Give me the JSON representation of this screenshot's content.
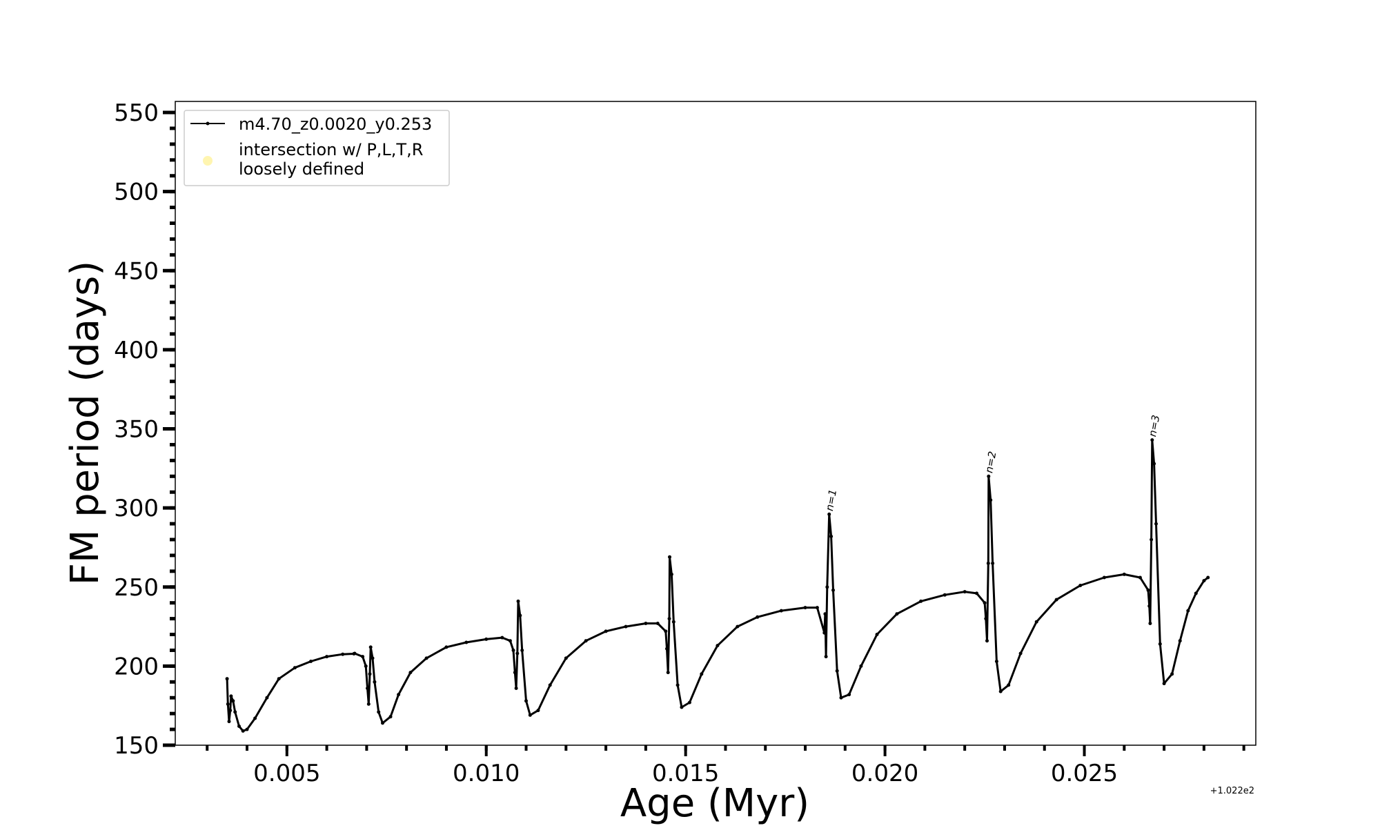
{
  "chart_data": {
    "type": "line",
    "xlabel": "Age (Myr)",
    "ylabel": "FM period (days)",
    "x_offset_label": "+1.022e2",
    "xlim": [
      0.0022,
      0.0293
    ],
    "ylim": [
      150,
      557
    ],
    "x_major_ticks": [
      0.005,
      0.01,
      0.015,
      0.02,
      0.025
    ],
    "x_tick_labels": [
      "0.005",
      "0.010",
      "0.015",
      "0.020",
      "0.025"
    ],
    "x_minor_step": 0.001,
    "y_major_ticks": [
      150,
      200,
      250,
      300,
      350,
      400,
      450,
      500,
      550
    ],
    "y_tick_labels": [
      "150",
      "200",
      "250",
      "300",
      "350",
      "400",
      "450",
      "500",
      "550"
    ],
    "y_minor_step": 10,
    "grid": false,
    "legend_position": "top-left",
    "legend": [
      {
        "label": "m4.70_z0.0020_y0.253",
        "style": "line-marker",
        "color": "#000000"
      },
      {
        "label": "intersection w/ P,L,T,R\nloosely defined",
        "style": "dot",
        "color": "#fff5b0"
      }
    ],
    "series": [
      {
        "name": "m4.70_z0.0020_y0.253",
        "color": "#000000",
        "points": [
          [
            0.0035,
            192
          ],
          [
            0.00352,
            176
          ],
          [
            0.00355,
            165
          ],
          [
            0.00358,
            172
          ],
          [
            0.0036,
            181
          ],
          [
            0.00365,
            178
          ],
          [
            0.0037,
            171
          ],
          [
            0.0038,
            162
          ],
          [
            0.0039,
            159
          ],
          [
            0.004,
            160
          ],
          [
            0.0042,
            167
          ],
          [
            0.0045,
            180
          ],
          [
            0.0048,
            192
          ],
          [
            0.0052,
            199
          ],
          [
            0.0056,
            203
          ],
          [
            0.006,
            206
          ],
          [
            0.0064,
            207.5
          ],
          [
            0.0067,
            208
          ],
          [
            0.0069,
            206
          ],
          [
            0.00698,
            200
          ],
          [
            0.00702,
            186
          ],
          [
            0.00705,
            176
          ],
          [
            0.00708,
            195
          ],
          [
            0.0071,
            212
          ],
          [
            0.00715,
            205
          ],
          [
            0.0072,
            190
          ],
          [
            0.0073,
            171
          ],
          [
            0.0074,
            164
          ],
          [
            0.0076,
            168
          ],
          [
            0.0078,
            182
          ],
          [
            0.0081,
            196
          ],
          [
            0.0085,
            205
          ],
          [
            0.009,
            212
          ],
          [
            0.0095,
            215
          ],
          [
            0.01,
            217
          ],
          [
            0.0104,
            218
          ],
          [
            0.0106,
            216
          ],
          [
            0.00668,
            207.8
          ],
          [
            0.01068,
            210
          ],
          [
            0.01072,
            196
          ],
          [
            0.01075,
            186
          ],
          [
            0.01078,
            208
          ],
          [
            0.0108,
            241
          ],
          [
            0.01085,
            232
          ],
          [
            0.0109,
            210
          ],
          [
            0.011,
            178
          ],
          [
            0.0111,
            169
          ],
          [
            0.0113,
            172
          ],
          [
            0.0116,
            188
          ],
          [
            0.012,
            205
          ],
          [
            0.0125,
            216
          ],
          [
            0.013,
            222
          ],
          [
            0.0135,
            225
          ],
          [
            0.014,
            227
          ],
          [
            0.0143,
            227
          ],
          [
            0.0145,
            222
          ],
          [
            0.01453,
            211
          ],
          [
            0.01456,
            196
          ],
          [
            0.01459,
            230
          ],
          [
            0.0146,
            269
          ],
          [
            0.01465,
            258
          ],
          [
            0.0147,
            228
          ],
          [
            0.0148,
            188
          ],
          [
            0.0149,
            174
          ],
          [
            0.0151,
            177
          ],
          [
            0.0154,
            195
          ],
          [
            0.0158,
            213
          ],
          [
            0.0163,
            225
          ],
          [
            0.0168,
            231
          ],
          [
            0.0174,
            235
          ],
          [
            0.018,
            237
          ],
          [
            0.0183,
            237
          ],
          [
            0.0185,
            233
          ],
          [
            0.01848,
            221
          ],
          [
            0.01852,
            206
          ],
          [
            0.01855,
            250
          ],
          [
            0.0186,
            296
          ],
          [
            0.01865,
            282
          ],
          [
            0.0187,
            248
          ],
          [
            0.0188,
            197
          ],
          [
            0.0189,
            180
          ],
          [
            0.0191,
            182
          ],
          [
            0.0194,
            200
          ],
          [
            0.0198,
            220
          ],
          [
            0.0203,
            233
          ],
          [
            0.0209,
            241
          ],
          [
            0.0215,
            245
          ],
          [
            0.022,
            247
          ],
          [
            0.0223,
            246
          ],
          [
            0.0225,
            240
          ],
          [
            0.02253,
            230
          ],
          [
            0.02256,
            216
          ],
          [
            0.02259,
            265
          ],
          [
            0.0226,
            320
          ],
          [
            0.02265,
            305
          ],
          [
            0.0227,
            265
          ],
          [
            0.0228,
            203
          ],
          [
            0.0229,
            184
          ],
          [
            0.0231,
            188
          ],
          [
            0.0234,
            208
          ],
          [
            0.0238,
            228
          ],
          [
            0.0243,
            242
          ],
          [
            0.0249,
            251
          ],
          [
            0.0255,
            256
          ],
          [
            0.026,
            258
          ],
          [
            0.0264,
            256
          ],
          [
            0.0266,
            248
          ],
          [
            0.02663,
            238
          ],
          [
            0.02665,
            227
          ],
          [
            0.02668,
            280
          ],
          [
            0.0267,
            343
          ],
          [
            0.02675,
            328
          ],
          [
            0.0268,
            290
          ],
          [
            0.0269,
            214
          ],
          [
            0.027,
            189
          ],
          [
            0.0272,
            195
          ],
          [
            0.0274,
            216
          ],
          [
            0.0276,
            235
          ],
          [
            0.0278,
            246
          ],
          [
            0.028,
            254
          ],
          [
            0.0281,
            256
          ]
        ]
      }
    ],
    "annotations": [
      {
        "text": "n=1",
        "x": 0.01862,
        "y": 296
      },
      {
        "text": "n=2",
        "x": 0.02262,
        "y": 320
      },
      {
        "text": "n=3",
        "x": 0.02672,
        "y": 343
      }
    ]
  }
}
